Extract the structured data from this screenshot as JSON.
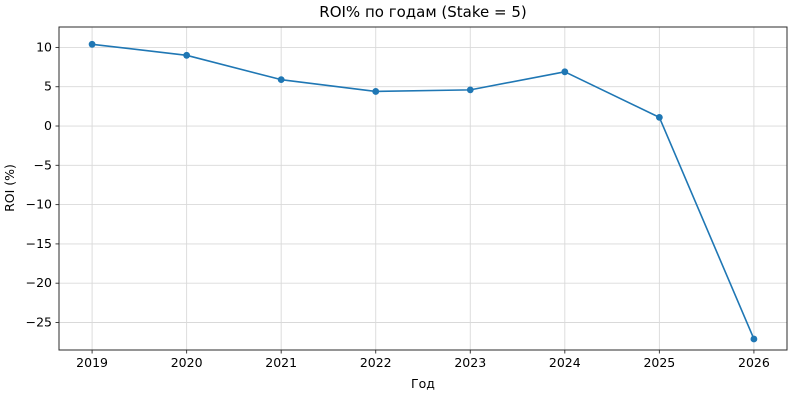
{
  "chart_data": {
    "type": "line",
    "title": "ROI% по годам (Stake = 5)",
    "xlabel": "Год",
    "ylabel": "ROI (%)",
    "x": [
      2019,
      2020,
      2021,
      2022,
      2023,
      2024,
      2025,
      2026
    ],
    "series": [
      {
        "name": "ROI%",
        "color": "#1f77b4",
        "values": [
          10.4,
          9.0,
          5.9,
          4.4,
          4.6,
          6.9,
          1.1,
          -27.1
        ]
      }
    ],
    "xticks": [
      2019,
      2020,
      2021,
      2022,
      2023,
      2024,
      2025,
      2026
    ],
    "yticks": [
      10,
      5,
      0,
      -5,
      -10,
      -15,
      -20,
      -25
    ],
    "xlim": [
      2018.65,
      2026.35
    ],
    "ylim": [
      -28.5,
      12.6
    ],
    "grid": true,
    "legend": "none",
    "marker": "circle",
    "colors": {
      "line": "#1f77b4",
      "grid": "#d9d9d9",
      "spine": "#2b2b2b",
      "text": "#000000",
      "background": "#ffffff"
    }
  }
}
